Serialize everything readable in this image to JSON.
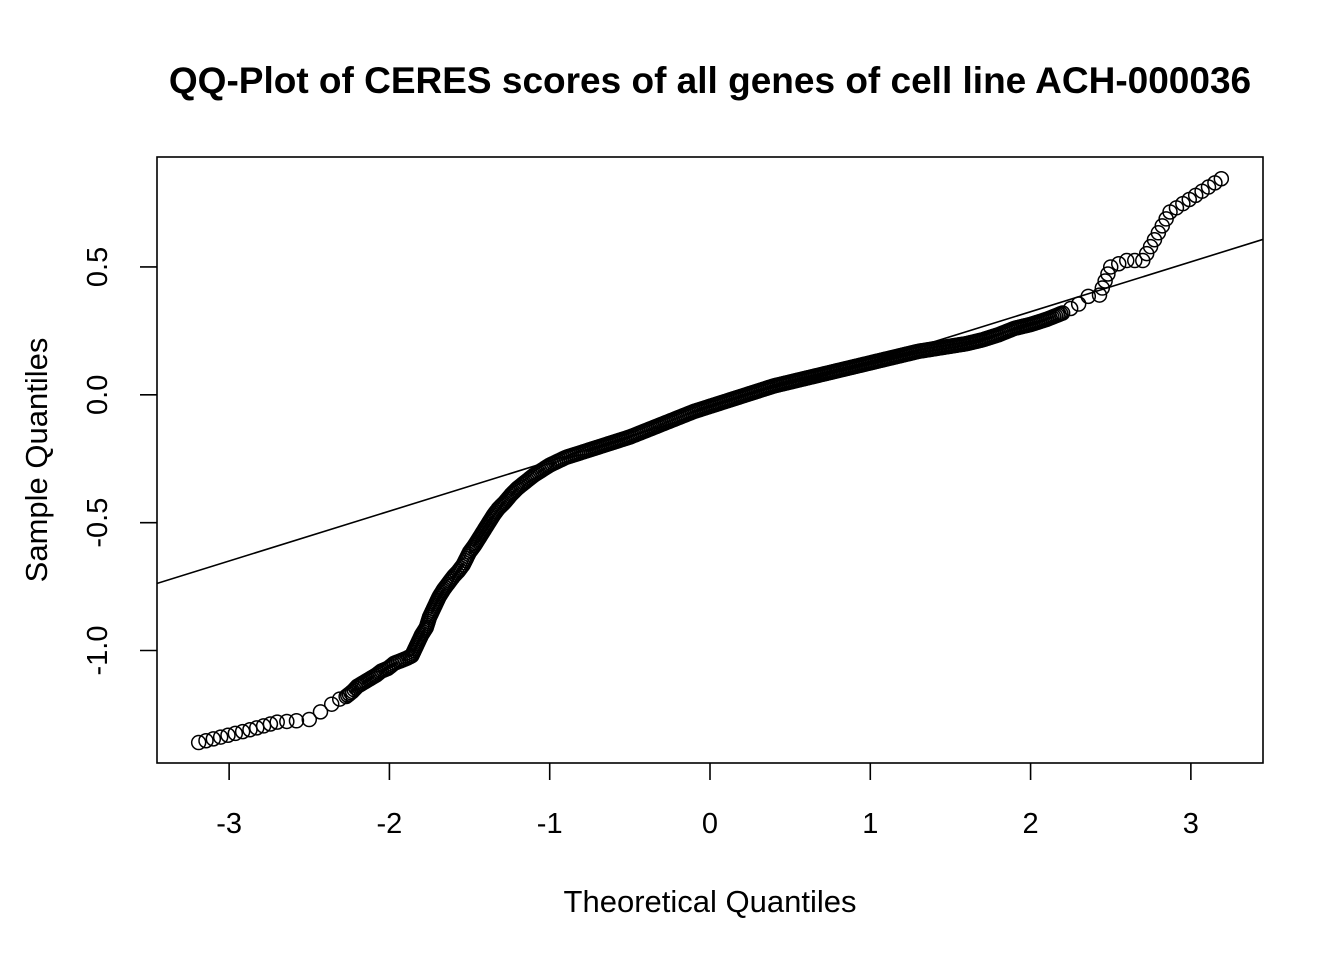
{
  "chart_data": {
    "type": "scatter",
    "title": "QQ-Plot of CERES scores of all genes of cell line ACH-000036",
    "xlabel": "Theoretical Quantiles",
    "ylabel": "Sample Quantiles",
    "xlim": [
      -3.45,
      3.45
    ],
    "ylim": [
      -1.44,
      0.93
    ],
    "x_ticks": [
      -3,
      -2,
      -1,
      0,
      1,
      2,
      3
    ],
    "x_tick_labels": [
      "-3",
      "-2",
      "-1",
      "0",
      "1",
      "2",
      "3"
    ],
    "y_ticks": [
      -1.0,
      -0.5,
      0.0,
      0.5
    ],
    "y_tick_labels": [
      "-1.0",
      "-0.5",
      "0.0",
      "0.5"
    ],
    "reference_line": {
      "intercept": -0.065,
      "slope": 0.195
    },
    "marker": "open-circle",
    "grid": false,
    "legend": "none",
    "qq_curve": [
      [
        -3.19,
        -1.36
      ],
      [
        -2.87,
        -1.31
      ],
      [
        -2.7,
        -1.28
      ],
      [
        -2.58,
        -1.275
      ],
      [
        -2.5,
        -1.27
      ],
      [
        -2.43,
        -1.24
      ],
      [
        -2.36,
        -1.21
      ],
      [
        -2.31,
        -1.19
      ],
      [
        -2.27,
        -1.18
      ],
      [
        -2.23,
        -1.16
      ],
      [
        -2.2,
        -1.14
      ],
      [
        -2.16,
        -1.125
      ],
      [
        -2.12,
        -1.11
      ],
      [
        -2.08,
        -1.095
      ],
      [
        -2.05,
        -1.08
      ],
      [
        -2.01,
        -1.07
      ],
      [
        -1.97,
        -1.05
      ],
      [
        -1.93,
        -1.04
      ],
      [
        -1.89,
        -1.03
      ],
      [
        -1.86,
        -1.02
      ],
      [
        -1.83,
        -0.98
      ],
      [
        -1.8,
        -0.94
      ],
      [
        -1.77,
        -0.91
      ],
      [
        -1.75,
        -0.87
      ],
      [
        -1.72,
        -0.83
      ],
      [
        -1.69,
        -0.79
      ],
      [
        -1.66,
        -0.76
      ],
      [
        -1.63,
        -0.735
      ],
      [
        -1.6,
        -0.71
      ],
      [
        -1.57,
        -0.69
      ],
      [
        -1.54,
        -0.665
      ],
      [
        -1.52,
        -0.64
      ],
      [
        -1.5,
        -0.615
      ],
      [
        -1.47,
        -0.59
      ],
      [
        -1.44,
        -0.56
      ],
      [
        -1.41,
        -0.53
      ],
      [
        -1.38,
        -0.5
      ],
      [
        -1.35,
        -0.47
      ],
      [
        -1.32,
        -0.445
      ],
      [
        -1.28,
        -0.42
      ],
      [
        -1.24,
        -0.39
      ],
      [
        -1.2,
        -0.365
      ],
      [
        -1.15,
        -0.34
      ],
      [
        -1.1,
        -0.315
      ],
      [
        -1.05,
        -0.295
      ],
      [
        -1.0,
        -0.275
      ],
      [
        -0.95,
        -0.26
      ],
      [
        -0.9,
        -0.245
      ],
      [
        -0.85,
        -0.235
      ],
      [
        -0.8,
        -0.225
      ],
      [
        -0.7,
        -0.205
      ],
      [
        -0.6,
        -0.185
      ],
      [
        -0.5,
        -0.165
      ],
      [
        -0.4,
        -0.14
      ],
      [
        -0.3,
        -0.115
      ],
      [
        -0.2,
        -0.09
      ],
      [
        -0.1,
        -0.065
      ],
      [
        0.0,
        -0.045
      ],
      [
        0.1,
        -0.025
      ],
      [
        0.2,
        -0.005
      ],
      [
        0.3,
        0.015
      ],
      [
        0.4,
        0.035
      ],
      [
        0.5,
        0.05
      ],
      [
        0.6,
        0.065
      ],
      [
        0.7,
        0.08
      ],
      [
        0.8,
        0.095
      ],
      [
        0.9,
        0.11
      ],
      [
        1.0,
        0.125
      ],
      [
        1.1,
        0.14
      ],
      [
        1.2,
        0.155
      ],
      [
        1.3,
        0.17
      ],
      [
        1.4,
        0.18
      ],
      [
        1.5,
        0.19
      ],
      [
        1.6,
        0.2
      ],
      [
        1.7,
        0.215
      ],
      [
        1.8,
        0.235
      ],
      [
        1.9,
        0.26
      ],
      [
        2.0,
        0.275
      ],
      [
        2.1,
        0.295
      ],
      [
        2.2,
        0.32
      ],
      [
        2.3,
        0.355
      ],
      [
        2.36,
        0.385
      ],
      [
        2.43,
        0.39
      ],
      [
        2.5,
        0.5
      ],
      [
        2.6,
        0.525
      ],
      [
        2.7,
        0.525
      ],
      [
        2.87,
        0.715
      ],
      [
        3.19,
        0.845
      ]
    ]
  }
}
